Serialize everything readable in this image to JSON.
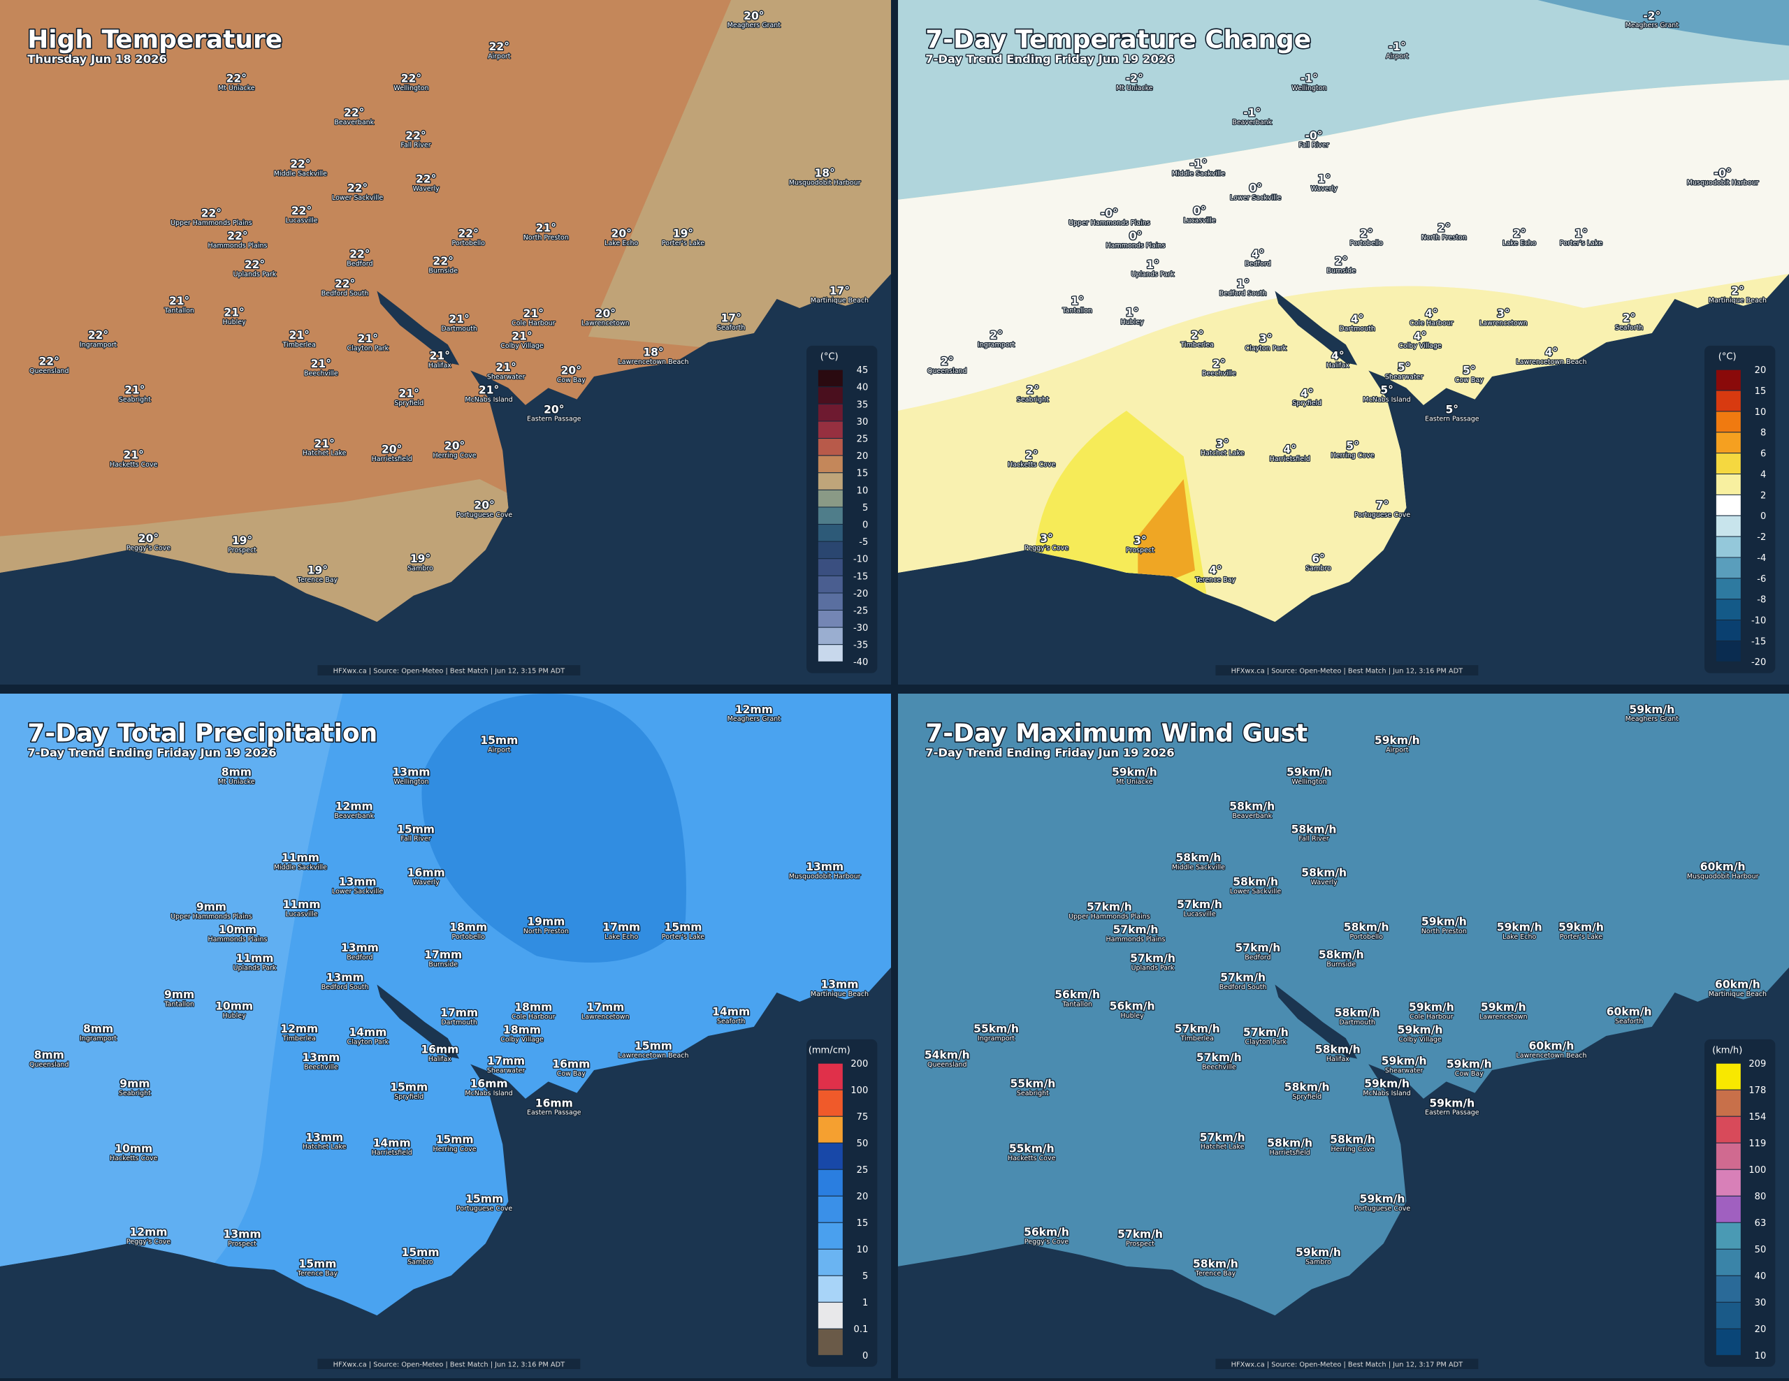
{
  "places": [
    "Meaghers Grant",
    "Airport",
    "Mt Uniacke",
    "Wellington",
    "Beaverbank",
    "Fall River",
    "Middle Sackville",
    "Waverly",
    "Lower Sackville",
    "Musquodobit Harbour",
    "Upper Hammonds Plains",
    "Lucasville",
    "Hammonds Plains",
    "Portobello",
    "North Preston",
    "Lake Echo",
    "Porter's Lake",
    "Uplands Park",
    "Bedford",
    "Burnside",
    "Bedford South",
    "Tantallon",
    "Hubley",
    "Dartmouth",
    "Cole Harbour",
    "Lawrencetown",
    "Seaforth",
    "Martinique Beach",
    "Ingramport",
    "Timberlea",
    "Clayton Park",
    "Colby Village",
    "Queensland",
    "Halifax",
    "Beechville",
    "Lawrencetown Beach",
    "Shearwater",
    "Cow Bay",
    "Seabright",
    "Spryfield",
    "McNabs Island",
    "Eastern Passage",
    "Hatchet Lake",
    "Harrietsfield",
    "Herring Cove",
    "Hacketts Cove",
    "Portuguese Cove",
    "Peggy's Cove",
    "Prospect",
    "Terence Bay",
    "Sambro"
  ],
  "panels": [
    {
      "title": "High Temperature",
      "subtitle": "Thursday Jun 18 2026",
      "legend_unit": "(°C)",
      "legend_labels": [
        "45",
        "40",
        "35",
        "30",
        "25",
        "20",
        "15",
        "10",
        "5",
        "0",
        "-5",
        "-10",
        "-15",
        "-20",
        "-25",
        "-30",
        "-35",
        "-40"
      ],
      "legend_colors": [
        "#2a0a10",
        "#4a0f1e",
        "#6e1a30",
        "#963040",
        "#b85a4a",
        "#c4875a",
        "#bfa57a",
        "#8a9a86",
        "#4f7d8a",
        "#2d5a78",
        "#2a4670",
        "#3a4f80",
        "#4a5e90",
        "#5a6fa0",
        "#7486b4",
        "#9aaed0",
        "#c8d8ec"
      ],
      "values": [
        "20°",
        "22°",
        "22°",
        "22°",
        "22°",
        "22°",
        "22°",
        "22°",
        "22°",
        "18°",
        "22°",
        "22°",
        "22°",
        "22°",
        "21°",
        "20°",
        "19°",
        "22°",
        "22°",
        "22°",
        "22°",
        "21°",
        "21°",
        "21°",
        "21°",
        "20°",
        "17°",
        "17°",
        "22°",
        "21°",
        "21°",
        "21°",
        "22°",
        "21°",
        "21°",
        "18°",
        "21°",
        "20°",
        "21°",
        "21°",
        "21°",
        "20°",
        "21°",
        "20°",
        "20°",
        "21°",
        "20°",
        "20°",
        "19°",
        "19°",
        "19°"
      ],
      "footer": "HFXwx.ca | Source: Open-Meteo | Best Match | Jun 12, 3:15 PM ADT"
    },
    {
      "title": "7-Day Temperature Change",
      "subtitle": "7-Day Trend Ending Friday Jun 19 2026",
      "legend_unit": "(°C)",
      "legend_labels": [
        "20",
        "15",
        "10",
        "8",
        "6",
        "4",
        "2",
        "0",
        "-2",
        "-4",
        "-6",
        "-8",
        "-10",
        "-15",
        "-20"
      ],
      "legend_colors": [
        "#8a0a0a",
        "#d83a10",
        "#f07a10",
        "#f5a020",
        "#f5d840",
        "#f8f0a0",
        "#ffffff",
        "#c8e4ec",
        "#94c8da",
        "#5a9ebc",
        "#2e7aa0",
        "#145a88",
        "#0a4070",
        "#0a2c50"
      ],
      "values": [
        "-2°",
        "-1°",
        "-2°",
        "-1°",
        "-1°",
        "-0°",
        "-1°",
        "1°",
        "0°",
        "-0°",
        "-0°",
        "0°",
        "0°",
        "2°",
        "2°",
        "2°",
        "1°",
        "1°",
        "4°",
        "2°",
        "1°",
        "1°",
        "1°",
        "4°",
        "4°",
        "3°",
        "2°",
        "2°",
        "2°",
        "2°",
        "3°",
        "4°",
        "2°",
        "4°",
        "2°",
        "4°",
        "5°",
        "5°",
        "2°",
        "4°",
        "5°",
        "5°",
        "3°",
        "4°",
        "5°",
        "2°",
        "7°",
        "3°",
        "3°",
        "4°",
        "6°"
      ],
      "footer": "HFXwx.ca | Source: Open-Meteo | Best Match | Jun 12, 3:16 PM ADT"
    },
    {
      "title": "7-Day Total Precipitation",
      "subtitle": "7-Day Trend Ending Friday Jun 19 2026",
      "legend_unit": "(mm/cm)",
      "legend_labels": [
        "200",
        "100",
        "75",
        "50",
        "25",
        "20",
        "15",
        "10",
        "5",
        "1",
        "0.1",
        "0"
      ],
      "legend_colors": [
        "#e0304a",
        "#f05a2a",
        "#f5a030",
        "#1848a8",
        "#2a7ee0",
        "#3a90e8",
        "#4aa0ee",
        "#6ab4f2",
        "#a8d4f8",
        "#e8e8ea",
        "#6a5a48"
      ],
      "values": [
        "12mm",
        "15mm",
        "8mm",
        "13mm",
        "12mm",
        "15mm",
        "11mm",
        "16mm",
        "13mm",
        "13mm",
        "9mm",
        "11mm",
        "10mm",
        "18mm",
        "19mm",
        "17mm",
        "15mm",
        "11mm",
        "13mm",
        "17mm",
        "13mm",
        "9mm",
        "10mm",
        "17mm",
        "18mm",
        "17mm",
        "14mm",
        "13mm",
        "8mm",
        "12mm",
        "14mm",
        "18mm",
        "8mm",
        "16mm",
        "13mm",
        "15mm",
        "17mm",
        "16mm",
        "9mm",
        "15mm",
        "16mm",
        "16mm",
        "13mm",
        "14mm",
        "15mm",
        "10mm",
        "15mm",
        "12mm",
        "13mm",
        "15mm",
        "15mm"
      ],
      "footer": "HFXwx.ca | Source: Open-Meteo | Best Match | Jun 12, 3:16 PM ADT"
    },
    {
      "title": "7-Day Maximum Wind Gust",
      "subtitle": "7-Day Trend Ending Friday Jun 19 2026",
      "legend_unit": "(km/h)",
      "legend_labels": [
        "209",
        "178",
        "154",
        "119",
        "100",
        "80",
        "63",
        "50",
        "40",
        "30",
        "20",
        "10"
      ],
      "legend_colors": [
        "#f8e800",
        "#c8704a",
        "#d84a5a",
        "#d06a90",
        "#d880b8",
        "#a060c0",
        "#4a9ab4",
        "#3a84a8",
        "#2a6a98",
        "#1a5a88",
        "#0a4678"
      ],
      "values": [
        "59km/h",
        "59km/h",
        "59km/h",
        "59km/h",
        "58km/h",
        "58km/h",
        "58km/h",
        "58km/h",
        "58km/h",
        "60km/h",
        "57km/h",
        "57km/h",
        "57km/h",
        "58km/h",
        "59km/h",
        "59km/h",
        "59km/h",
        "57km/h",
        "57km/h",
        "58km/h",
        "57km/h",
        "56km/h",
        "56km/h",
        "58km/h",
        "59km/h",
        "59km/h",
        "60km/h",
        "60km/h",
        "55km/h",
        "57km/h",
        "57km/h",
        "59km/h",
        "54km/h",
        "58km/h",
        "57km/h",
        "60km/h",
        "59km/h",
        "59km/h",
        "55km/h",
        "58km/h",
        "59km/h",
        "59km/h",
        "57km/h",
        "58km/h",
        "58km/h",
        "55km/h",
        "59km/h",
        "56km/h",
        "57km/h",
        "58km/h",
        "59km/h"
      ],
      "footer": "HFXwx.ca | Source: Open-Meteo | Best Match | Jun 12, 3:17 PM ADT"
    }
  ]
}
